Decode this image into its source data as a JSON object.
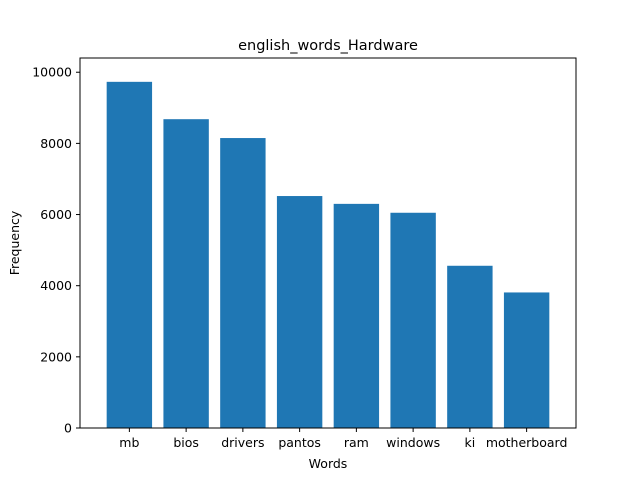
{
  "chart_data": {
    "type": "bar",
    "title": "english_words_Hardware",
    "xlabel": "Words",
    "ylabel": "Frequency",
    "categories": [
      "mb",
      "bios",
      "drivers",
      "pantos",
      "ram",
      "windows",
      "ki",
      "motherboard"
    ],
    "values": [
      9730,
      8680,
      8150,
      6520,
      6300,
      6050,
      4560,
      3810
    ],
    "ylim": [
      0,
      10400
    ],
    "yticks": [
      0,
      2000,
      4000,
      6000,
      8000,
      10000
    ],
    "bar_color": "#1f77b4",
    "grid": false,
    "legend": "none"
  }
}
